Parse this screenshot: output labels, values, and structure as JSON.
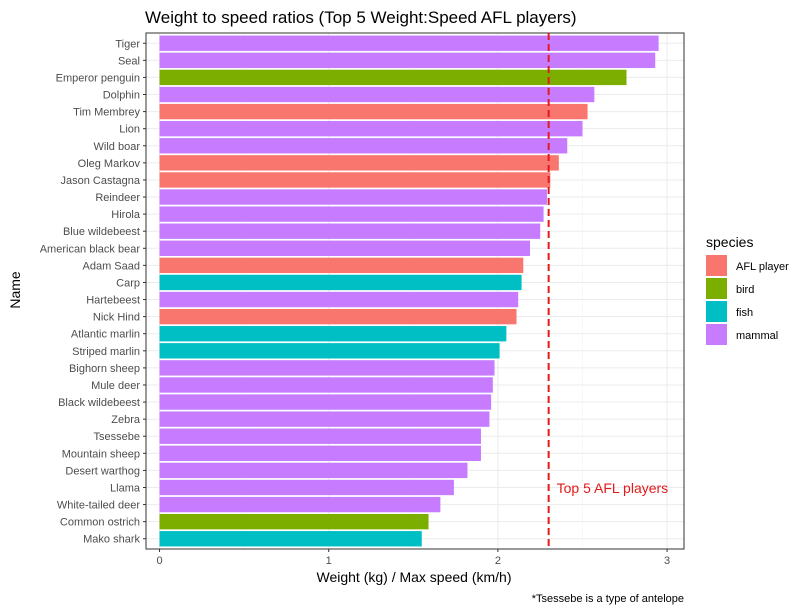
{
  "chart_data": {
    "type": "bar",
    "orientation": "horizontal",
    "title": "Weight to speed ratios (Top 5 Weight:Speed AFL players)",
    "xlabel": "Weight (kg) / Max speed (km/h)",
    "ylabel": "Name",
    "xlim": [
      -0.08,
      3.1
    ],
    "xticks": [
      0,
      1,
      2,
      3
    ],
    "caption": "*Tsessebe is a type of antelope",
    "legend": {
      "title": "species",
      "position": "right",
      "entries": [
        {
          "label": "AFL player",
          "color": "#F8766D"
        },
        {
          "label": "bird",
          "color": "#7CAE00"
        },
        {
          "label": "fish",
          "color": "#00BFC4"
        },
        {
          "label": "mammal",
          "color": "#C77CFF"
        }
      ]
    },
    "reference_line": {
      "x": 2.3,
      "label": "Top 5 AFL players",
      "color": "#e31a1c"
    },
    "bars": [
      {
        "name": "Tiger",
        "value": 2.95,
        "species": "mammal"
      },
      {
        "name": "Seal",
        "value": 2.93,
        "species": "mammal"
      },
      {
        "name": "Emperor penguin",
        "value": 2.76,
        "species": "bird"
      },
      {
        "name": "Dolphin",
        "value": 2.57,
        "species": "mammal"
      },
      {
        "name": "Tim Membrey",
        "value": 2.53,
        "species": "AFL player"
      },
      {
        "name": "Lion",
        "value": 2.5,
        "species": "mammal"
      },
      {
        "name": "Wild boar",
        "value": 2.41,
        "species": "mammal"
      },
      {
        "name": "Oleg Markov",
        "value": 2.36,
        "species": "AFL player"
      },
      {
        "name": "Jason Castagna",
        "value": 2.31,
        "species": "AFL player"
      },
      {
        "name": "Reindeer",
        "value": 2.29,
        "species": "mammal"
      },
      {
        "name": "Hirola",
        "value": 2.27,
        "species": "mammal"
      },
      {
        "name": "Blue wildebeest",
        "value": 2.25,
        "species": "mammal"
      },
      {
        "name": "American black bear",
        "value": 2.19,
        "species": "mammal"
      },
      {
        "name": "Adam Saad",
        "value": 2.15,
        "species": "AFL player"
      },
      {
        "name": "Carp",
        "value": 2.14,
        "species": "fish"
      },
      {
        "name": "Hartebeest",
        "value": 2.12,
        "species": "mammal"
      },
      {
        "name": "Nick Hind",
        "value": 2.11,
        "species": "AFL player"
      },
      {
        "name": "Atlantic marlin",
        "value": 2.05,
        "species": "fish"
      },
      {
        "name": "Striped marlin",
        "value": 2.01,
        "species": "fish"
      },
      {
        "name": "Bighorn sheep",
        "value": 1.98,
        "species": "mammal"
      },
      {
        "name": "Mule deer",
        "value": 1.97,
        "species": "mammal"
      },
      {
        "name": "Black wildebeest",
        "value": 1.96,
        "species": "mammal"
      },
      {
        "name": "Zebra",
        "value": 1.95,
        "species": "mammal"
      },
      {
        "name": "Tsessebe",
        "value": 1.9,
        "species": "mammal"
      },
      {
        "name": "Mountain sheep",
        "value": 1.9,
        "species": "mammal"
      },
      {
        "name": "Desert warthog",
        "value": 1.82,
        "species": "mammal"
      },
      {
        "name": "Llama",
        "value": 1.74,
        "species": "mammal"
      },
      {
        "name": "White-tailed deer",
        "value": 1.66,
        "species": "mammal"
      },
      {
        "name": "Common ostrich",
        "value": 1.59,
        "species": "bird"
      },
      {
        "name": "Mako shark",
        "value": 1.55,
        "species": "fish"
      }
    ]
  }
}
